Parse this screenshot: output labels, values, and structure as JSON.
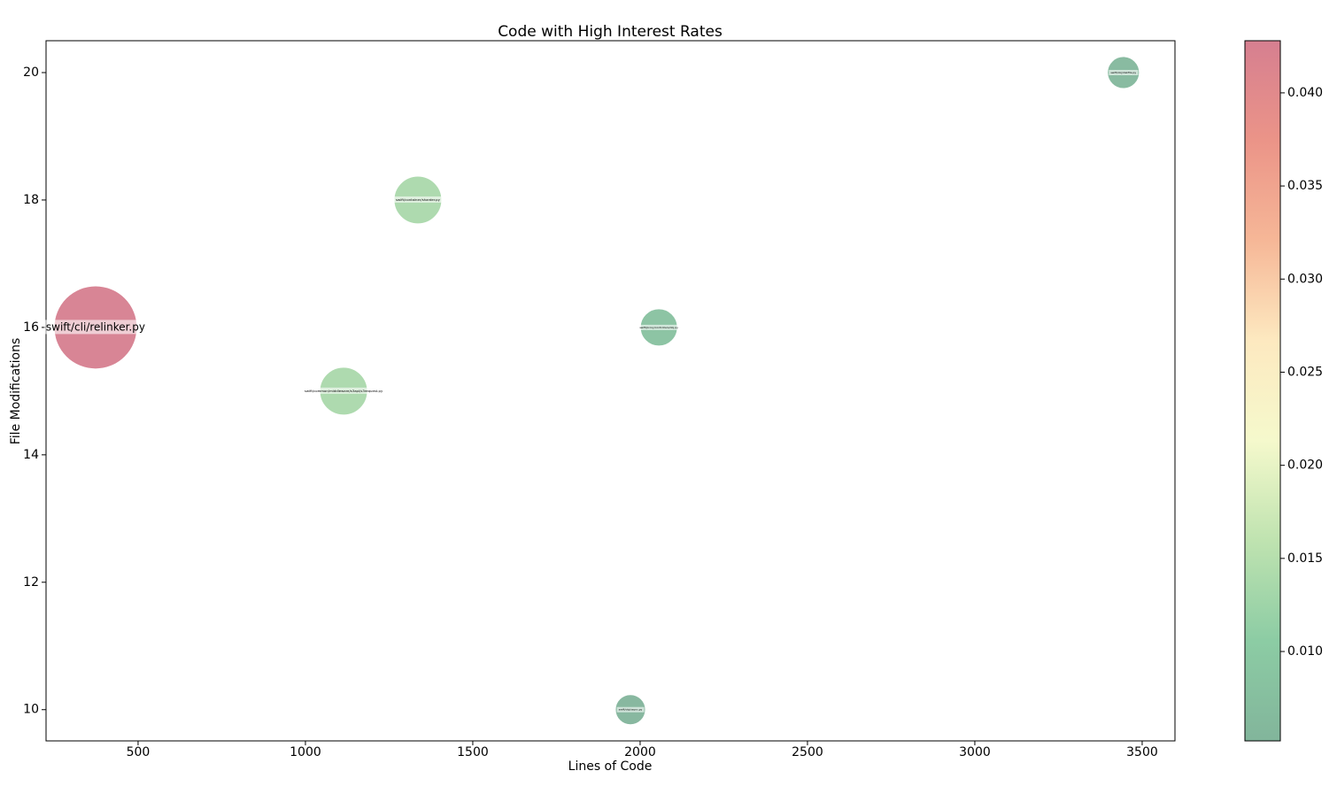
{
  "chart_data": {
    "type": "scatter",
    "title": "Code with High Interest Rates",
    "x_label": "Lines of Code",
    "y_label": "File Modifications",
    "xlim": [
      225,
      3598
    ],
    "ylim": [
      9.51,
      20.5
    ],
    "xticks": [
      500,
      1000,
      1500,
      2000,
      2500,
      3000,
      3500
    ],
    "yticks": [
      10,
      12,
      14,
      16,
      18,
      20
    ],
    "clim": [
      0.0052,
      0.0428
    ],
    "cticks": [
      {
        "value": 0.01,
        "label": "0.010"
      },
      {
        "value": 0.015,
        "label": "0.015"
      },
      {
        "value": 0.02,
        "label": "0.020"
      },
      {
        "value": 0.025,
        "label": "0.025"
      },
      {
        "value": 0.03,
        "label": "0.030"
      },
      {
        "value": 0.035,
        "label": "0.035"
      },
      {
        "value": 0.04,
        "label": "0.040"
      }
    ],
    "colormap": [
      "#82b59b",
      "#8ccca4",
      "#bfe3b0",
      "#f5f9cc",
      "#fde9c0",
      "#f6b797",
      "#eb9488",
      "#d67f90"
    ],
    "series": [
      {
        "labels": [
          "swift/cli/relinker.py",
          "swift/common/middleware/s3api/s3request.py",
          "swift/container/sharder.py",
          "swift/proxy/controllers/obj.py",
          "swift/obj/ssync.py",
          "swift/obj/diskfile.py"
        ],
        "x": [
          373,
          1114,
          1336,
          2056,
          1971,
          3444
        ],
        "values": [
          16,
          15,
          18,
          16,
          10,
          20
        ],
        "c": [
          0.0428,
          0.0137,
          0.0137,
          0.0081,
          0.0052,
          0.0059
        ]
      }
    ]
  }
}
